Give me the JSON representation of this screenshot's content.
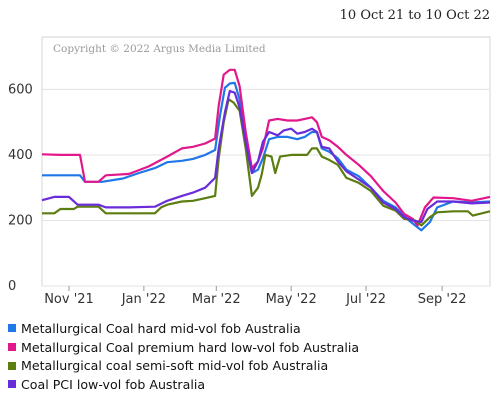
{
  "date_range": "10 Oct 21 to 10 Oct 22",
  "copyright": "Copyright © 2022 Argus Media Limited",
  "chart_data": {
    "type": "line",
    "ylim": [
      0,
      760
    ],
    "yticks": [
      0,
      200,
      400,
      600
    ],
    "xlim": [
      "2021-10-10",
      "2022-10-10"
    ],
    "xticks": [
      {
        "date": "2021-11-01",
        "label": "Nov '21"
      },
      {
        "date": "2022-01-01",
        "label": "Jan '22"
      },
      {
        "date": "2022-03-01",
        "label": "Mar '22"
      },
      {
        "date": "2022-05-01",
        "label": "May '22"
      },
      {
        "date": "2022-07-01",
        "label": "Jul '22"
      },
      {
        "date": "2022-09-01",
        "label": "Sep '22"
      }
    ],
    "grid": true,
    "legend_position": "bottom",
    "series": [
      {
        "name": "Metallurgical Coal hard mid-vol fob Australia",
        "color": "#1f77e8",
        "points": [
          [
            "2021-10-10",
            338
          ],
          [
            "2021-10-25",
            338
          ],
          [
            "2021-11-10",
            338
          ],
          [
            "2021-11-14",
            318
          ],
          [
            "2021-11-28",
            318
          ],
          [
            "2021-12-15",
            328
          ],
          [
            "2021-12-28",
            345
          ],
          [
            "2022-01-10",
            360
          ],
          [
            "2022-01-20",
            378
          ],
          [
            "2022-02-01",
            382
          ],
          [
            "2022-02-10",
            388
          ],
          [
            "2022-02-20",
            400
          ],
          [
            "2022-02-28",
            415
          ],
          [
            "2022-03-04",
            520
          ],
          [
            "2022-03-08",
            605
          ],
          [
            "2022-03-12",
            618
          ],
          [
            "2022-03-16",
            620
          ],
          [
            "2022-03-20",
            570
          ],
          [
            "2022-03-25",
            440
          ],
          [
            "2022-03-30",
            345
          ],
          [
            "2022-04-04",
            355
          ],
          [
            "2022-04-08",
            390
          ],
          [
            "2022-04-13",
            448
          ],
          [
            "2022-04-20",
            455
          ],
          [
            "2022-04-28",
            455
          ],
          [
            "2022-05-06",
            448
          ],
          [
            "2022-05-12",
            455
          ],
          [
            "2022-05-18",
            470
          ],
          [
            "2022-05-22",
            470
          ],
          [
            "2022-05-26",
            420
          ],
          [
            "2022-06-01",
            410
          ],
          [
            "2022-06-08",
            390
          ],
          [
            "2022-06-15",
            355
          ],
          [
            "2022-06-25",
            335
          ],
          [
            "2022-07-05",
            300
          ],
          [
            "2022-07-15",
            260
          ],
          [
            "2022-07-25",
            240
          ],
          [
            "2022-08-01",
            215
          ],
          [
            "2022-08-05",
            200
          ],
          [
            "2022-08-10",
            185
          ],
          [
            "2022-08-15",
            170
          ],
          [
            "2022-08-22",
            195
          ],
          [
            "2022-08-28",
            240
          ],
          [
            "2022-09-10",
            258
          ],
          [
            "2022-09-25",
            255
          ],
          [
            "2022-10-10",
            258
          ]
        ]
      },
      {
        "name": "Metallurgical Coal premium hard low-vol fob Australia",
        "color": "#e2178c",
        "points": [
          [
            "2021-10-10",
            402
          ],
          [
            "2021-10-25",
            400
          ],
          [
            "2021-11-05",
            400
          ],
          [
            "2021-11-10",
            400
          ],
          [
            "2021-11-14",
            318
          ],
          [
            "2021-11-25",
            318
          ],
          [
            "2021-12-01",
            338
          ],
          [
            "2021-12-20",
            342
          ],
          [
            "2022-01-05",
            365
          ],
          [
            "2022-01-20",
            395
          ],
          [
            "2022-02-01",
            420
          ],
          [
            "2022-02-10",
            425
          ],
          [
            "2022-02-20",
            435
          ],
          [
            "2022-02-28",
            450
          ],
          [
            "2022-03-03",
            550
          ],
          [
            "2022-03-07",
            645
          ],
          [
            "2022-03-12",
            660
          ],
          [
            "2022-03-16",
            660
          ],
          [
            "2022-03-20",
            610
          ],
          [
            "2022-03-25",
            470
          ],
          [
            "2022-03-30",
            360
          ],
          [
            "2022-04-04",
            380
          ],
          [
            "2022-04-08",
            420
          ],
          [
            "2022-04-13",
            505
          ],
          [
            "2022-04-20",
            510
          ],
          [
            "2022-04-28",
            505
          ],
          [
            "2022-05-06",
            505
          ],
          [
            "2022-05-12",
            510
          ],
          [
            "2022-05-18",
            515
          ],
          [
            "2022-05-22",
            500
          ],
          [
            "2022-05-26",
            455
          ],
          [
            "2022-06-01",
            445
          ],
          [
            "2022-06-08",
            425
          ],
          [
            "2022-06-15",
            400
          ],
          [
            "2022-06-25",
            370
          ],
          [
            "2022-07-05",
            335
          ],
          [
            "2022-07-15",
            290
          ],
          [
            "2022-07-25",
            255
          ],
          [
            "2022-08-01",
            220
          ],
          [
            "2022-08-08",
            205
          ],
          [
            "2022-08-12",
            185
          ],
          [
            "2022-08-18",
            240
          ],
          [
            "2022-08-25",
            270
          ],
          [
            "2022-09-10",
            268
          ],
          [
            "2022-09-25",
            260
          ],
          [
            "2022-10-10",
            272
          ]
        ]
      },
      {
        "name": "Metallurgical coal semi-soft mid-vol fob Australia",
        "color": "#5c7d0f",
        "points": [
          [
            "2021-10-10",
            222
          ],
          [
            "2021-10-20",
            222
          ],
          [
            "2021-10-25",
            235
          ],
          [
            "2021-11-05",
            235
          ],
          [
            "2021-11-08",
            242
          ],
          [
            "2021-11-25",
            242
          ],
          [
            "2021-12-01",
            222
          ],
          [
            "2021-12-20",
            222
          ],
          [
            "2022-01-10",
            222
          ],
          [
            "2022-01-15",
            240
          ],
          [
            "2022-01-20",
            248
          ],
          [
            "2022-02-01",
            258
          ],
          [
            "2022-02-10",
            260
          ],
          [
            "2022-02-20",
            268
          ],
          [
            "2022-02-28",
            275
          ],
          [
            "2022-03-03",
            390
          ],
          [
            "2022-03-07",
            500
          ],
          [
            "2022-03-11",
            570
          ],
          [
            "2022-03-15",
            560
          ],
          [
            "2022-03-20",
            535
          ],
          [
            "2022-03-25",
            420
          ],
          [
            "2022-03-30",
            275
          ],
          [
            "2022-04-04",
            300
          ],
          [
            "2022-04-07",
            340
          ],
          [
            "2022-04-10",
            400
          ],
          [
            "2022-04-15",
            395
          ],
          [
            "2022-04-18",
            345
          ],
          [
            "2022-04-22",
            395
          ],
          [
            "2022-05-01",
            400
          ],
          [
            "2022-05-08",
            400
          ],
          [
            "2022-05-14",
            400
          ],
          [
            "2022-05-18",
            420
          ],
          [
            "2022-05-22",
            420
          ],
          [
            "2022-05-26",
            395
          ],
          [
            "2022-06-01",
            385
          ],
          [
            "2022-06-08",
            370
          ],
          [
            "2022-06-15",
            330
          ],
          [
            "2022-06-25",
            315
          ],
          [
            "2022-07-05",
            290
          ],
          [
            "2022-07-15",
            245
          ],
          [
            "2022-07-25",
            230
          ],
          [
            "2022-08-01",
            205
          ],
          [
            "2022-08-10",
            200
          ],
          [
            "2022-08-15",
            185
          ],
          [
            "2022-08-22",
            210
          ],
          [
            "2022-08-28",
            225
          ],
          [
            "2022-09-10",
            228
          ],
          [
            "2022-09-22",
            228
          ],
          [
            "2022-09-26",
            215
          ],
          [
            "2022-10-10",
            228
          ]
        ]
      },
      {
        "name": "Coal PCI low-vol fob Australia",
        "color": "#6a2bd9",
        "points": [
          [
            "2021-10-10",
            262
          ],
          [
            "2021-10-20",
            272
          ],
          [
            "2021-11-01",
            272
          ],
          [
            "2021-11-08",
            248
          ],
          [
            "2021-11-25",
            248
          ],
          [
            "2021-12-01",
            240
          ],
          [
            "2021-12-20",
            240
          ],
          [
            "2022-01-10",
            242
          ],
          [
            "2022-01-20",
            260
          ],
          [
            "2022-02-01",
            275
          ],
          [
            "2022-02-10",
            285
          ],
          [
            "2022-02-20",
            300
          ],
          [
            "2022-02-28",
            330
          ],
          [
            "2022-03-03",
            420
          ],
          [
            "2022-03-08",
            530
          ],
          [
            "2022-03-12",
            595
          ],
          [
            "2022-03-16",
            590
          ],
          [
            "2022-03-20",
            545
          ],
          [
            "2022-03-25",
            440
          ],
          [
            "2022-03-30",
            345
          ],
          [
            "2022-04-04",
            380
          ],
          [
            "2022-04-08",
            440
          ],
          [
            "2022-04-13",
            470
          ],
          [
            "2022-04-20",
            460
          ],
          [
            "2022-04-25",
            475
          ],
          [
            "2022-05-01",
            480
          ],
          [
            "2022-05-06",
            465
          ],
          [
            "2022-05-12",
            470
          ],
          [
            "2022-05-18",
            480
          ],
          [
            "2022-05-22",
            470
          ],
          [
            "2022-05-26",
            425
          ],
          [
            "2022-06-01",
            420
          ],
          [
            "2022-06-08",
            380
          ],
          [
            "2022-06-15",
            350
          ],
          [
            "2022-06-25",
            325
          ],
          [
            "2022-07-05",
            300
          ],
          [
            "2022-07-15",
            255
          ],
          [
            "2022-07-25",
            235
          ],
          [
            "2022-08-01",
            210
          ],
          [
            "2022-08-08",
            200
          ],
          [
            "2022-08-15",
            195
          ],
          [
            "2022-08-20",
            235
          ],
          [
            "2022-08-28",
            258
          ],
          [
            "2022-09-10",
            258
          ],
          [
            "2022-09-25",
            252
          ],
          [
            "2022-10-10",
            255
          ]
        ]
      }
    ]
  }
}
